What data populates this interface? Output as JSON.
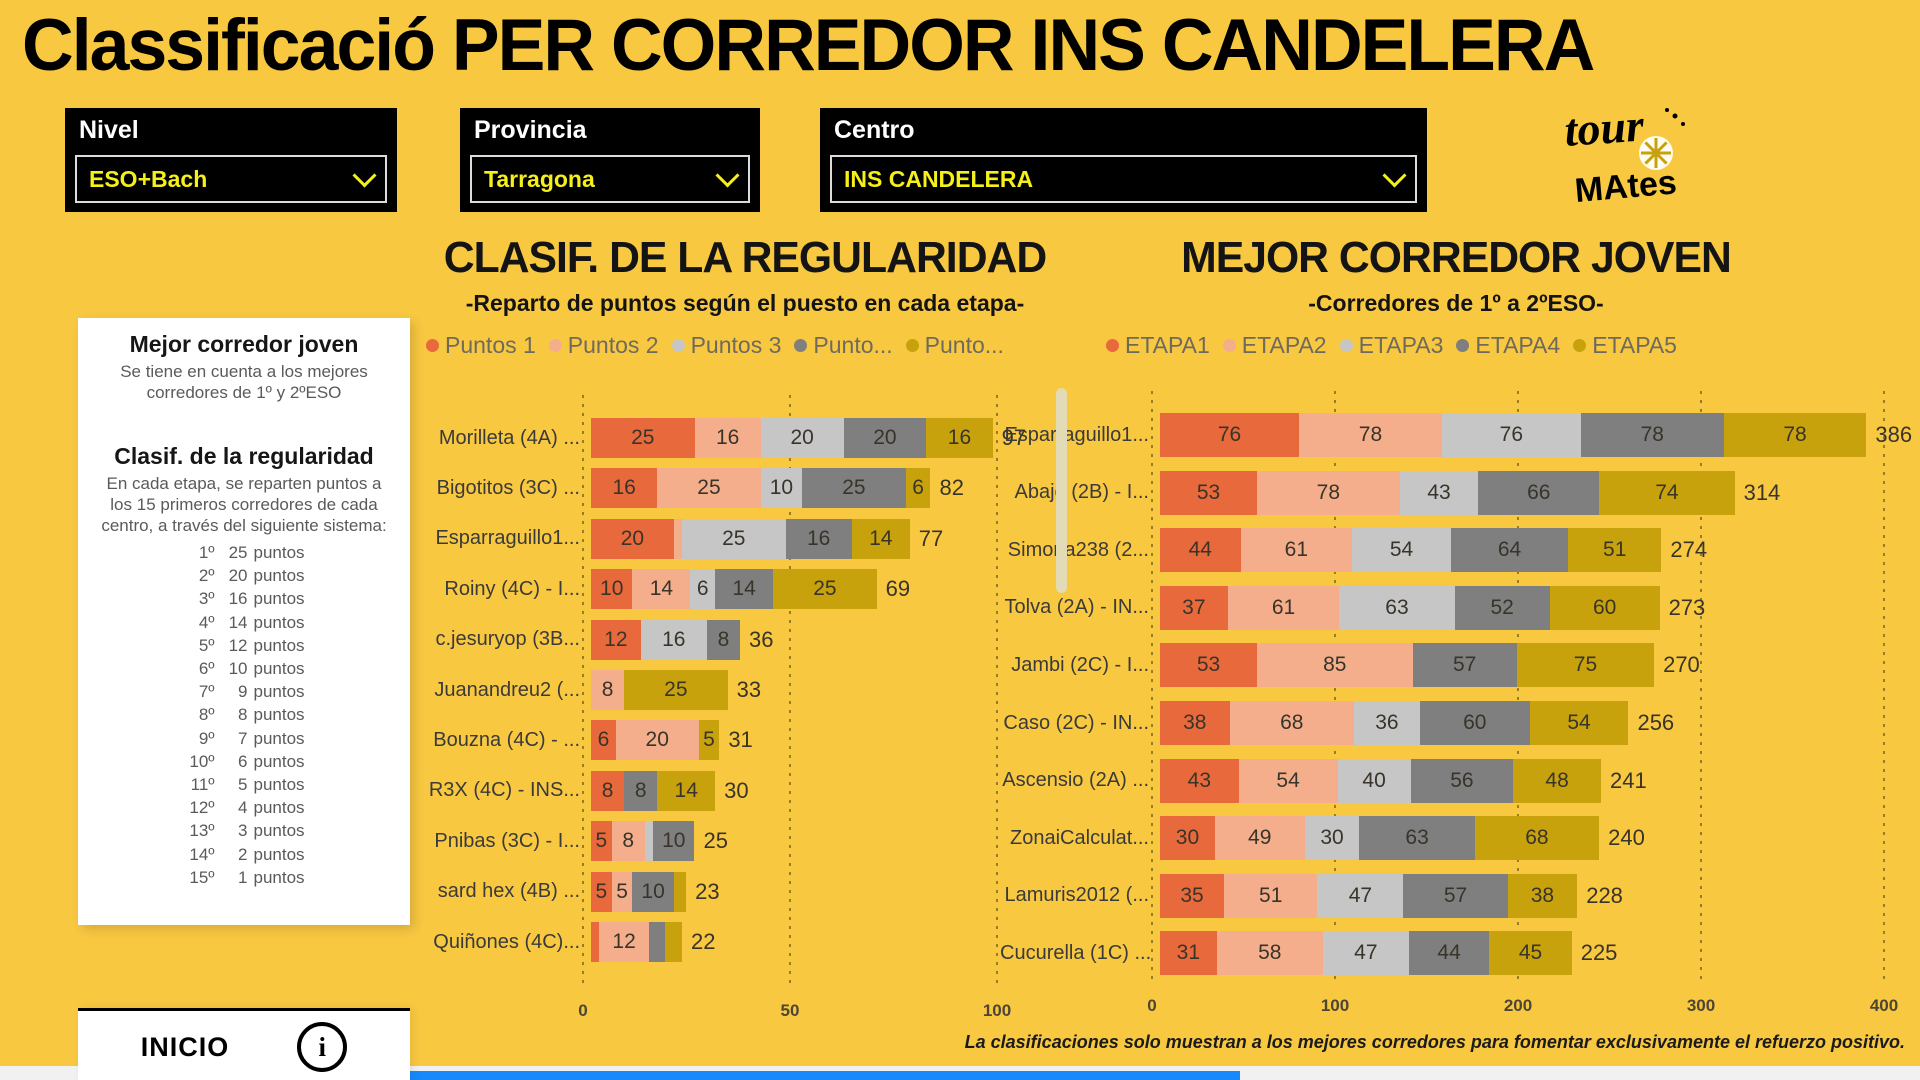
{
  "page": {
    "title": "Classificació PER CORREDOR INS CANDELERA",
    "background": "#F8C841"
  },
  "filters": [
    {
      "label": "Nivel",
      "value": "ESO+Bach"
    },
    {
      "label": "Provincia",
      "value": "Tarragona"
    },
    {
      "label": "Centro",
      "value": "INS CANDELERA"
    }
  ],
  "filter_value_color": "#F5EF1A",
  "logo": {
    "line1": "tour",
    "line2": "MAtes"
  },
  "info_panel": {
    "section1_title": "Mejor corredor joven",
    "section1_text": "Se tiene en cuenta a los mejores corredores de 1º y 2ºESO",
    "section2_title": "Clasif. de la regularidad",
    "section2_text": "En cada etapa, se reparten puntos a los 15 primeros corredores de cada centro, a través del siguiente sistema:",
    "points_table": [
      {
        "pos": "1º",
        "num": "25",
        "unit": "puntos"
      },
      {
        "pos": "2º",
        "num": "20",
        "unit": "puntos"
      },
      {
        "pos": "3º",
        "num": "16",
        "unit": "puntos"
      },
      {
        "pos": "4º",
        "num": "14",
        "unit": "puntos"
      },
      {
        "pos": "5º",
        "num": "12",
        "unit": "puntos"
      },
      {
        "pos": "6º",
        "num": "10",
        "unit": "puntos"
      },
      {
        "pos": "7º",
        "num": "9",
        "unit": "puntos"
      },
      {
        "pos": "8º",
        "num": "8",
        "unit": "puntos"
      },
      {
        "pos": "9º",
        "num": "7",
        "unit": "puntos"
      },
      {
        "pos": "10º",
        "num": "6",
        "unit": "puntos"
      },
      {
        "pos": "11º",
        "num": "5",
        "unit": "puntos"
      },
      {
        "pos": "12º",
        "num": "4",
        "unit": "puntos"
      },
      {
        "pos": "13º",
        "num": "3",
        "unit": "puntos"
      },
      {
        "pos": "14º",
        "num": "2",
        "unit": "puntos"
      },
      {
        "pos": "15º",
        "num": "1",
        "unit": "puntos"
      }
    ]
  },
  "inicio_button": {
    "label": "INICIO",
    "icon": "info-icon"
  },
  "footnote": "La clasificaciones solo muestran a los mejores corredores para fomentar exclusivamente el refuerzo positivo.",
  "chart_data": [
    {
      "type": "bar",
      "stacked": true,
      "orientation": "horizontal",
      "title": "CLASIF. DE LA REGULARIDAD",
      "subtitle": "-Reparto de puntos según el puesto en cada etapa-",
      "legend": [
        {
          "label": "Puntos 1",
          "color": "#E8693B"
        },
        {
          "label": "Puntos 2",
          "color": "#F4AE8B"
        },
        {
          "label": "Puntos 3",
          "color": "#C6C6C6"
        },
        {
          "label": "Punto...",
          "color": "#7F7F7F"
        },
        {
          "label": "Punto...",
          "color": "#C7A20C"
        }
      ],
      "xlim": [
        0,
        100
      ],
      "xticks": [
        0,
        50,
        100
      ],
      "grid": "dotted-vertical",
      "rows": [
        {
          "label": "Morilleta (4A) ...",
          "values": [
            25,
            16,
            20,
            20,
            16
          ],
          "total": 97
        },
        {
          "label": "Bigotitos (3C) ...",
          "values": [
            16,
            25,
            10,
            25,
            6
          ],
          "total": 82
        },
        {
          "label": "Esparraguillo1...",
          "values": [
            20,
            2,
            25,
            16,
            14
          ],
          "total": 77
        },
        {
          "label": "Roiny (4C) - I...",
          "values": [
            10,
            14,
            6,
            14,
            25
          ],
          "total": 69
        },
        {
          "label": "c.jesuryop (3B...",
          "values": [
            12,
            0,
            16,
            8,
            0
          ],
          "total": 36
        },
        {
          "label": "Juanandreu2 (...",
          "values": [
            0,
            8,
            0,
            0,
            25
          ],
          "total": 33
        },
        {
          "label": "Bouzna (4C) - ...",
          "values": [
            6,
            20,
            0,
            0,
            5
          ],
          "total": 31
        },
        {
          "label": "R3X (4C) - INS...",
          "values": [
            8,
            0,
            0,
            8,
            14
          ],
          "total": 30
        },
        {
          "label": "Pnibas (3C) - I...",
          "values": [
            5,
            8,
            2,
            10,
            0
          ],
          "total": 25
        },
        {
          "label": "sard hex (4B) ...",
          "values": [
            5,
            5,
            0,
            10,
            3
          ],
          "total": 23
        },
        {
          "label": "Quiñones (4C)...",
          "values": [
            2,
            12,
            0,
            4,
            4
          ],
          "total": 22
        }
      ]
    },
    {
      "type": "bar",
      "stacked": true,
      "orientation": "horizontal",
      "title": "MEJOR CORREDOR JOVEN",
      "subtitle": "-Corredores de 1º a 2ºESO-",
      "legend": [
        {
          "label": "ETAPA1",
          "color": "#E8693B"
        },
        {
          "label": "ETAPA2",
          "color": "#F4AE8B"
        },
        {
          "label": "ETAPA3",
          "color": "#C6C6C6"
        },
        {
          "label": "ETAPA4",
          "color": "#7F7F7F"
        },
        {
          "label": "ETAPA5",
          "color": "#C7A20C"
        }
      ],
      "xlim": [
        0,
        400
      ],
      "xticks": [
        0,
        100,
        200,
        300,
        400
      ],
      "grid": "dotted-vertical",
      "rows": [
        {
          "label": "Esparraguillo1...",
          "values": [
            76,
            78,
            76,
            78,
            78
          ],
          "total": 386
        },
        {
          "label": "Abajo (2B) - I...",
          "values": [
            53,
            78,
            43,
            66,
            74
          ],
          "total": 314
        },
        {
          "label": "Simona238 (2...",
          "values": [
            44,
            61,
            54,
            64,
            51
          ],
          "total": 274
        },
        {
          "label": "Tolva (2A) - IN...",
          "values": [
            37,
            61,
            63,
            52,
            60
          ],
          "total": 273
        },
        {
          "label": "Jambi (2C) - I...",
          "values": [
            53,
            85,
            0,
            57,
            75
          ],
          "total": 270
        },
        {
          "label": "Caso (2C) - IN...",
          "values": [
            38,
            68,
            36,
            60,
            54
          ],
          "total": 256
        },
        {
          "label": "Ascensio (2A) ...",
          "values": [
            43,
            54,
            40,
            56,
            48
          ],
          "total": 241
        },
        {
          "label": "ZonaiCalculat...",
          "values": [
            30,
            49,
            30,
            63,
            68
          ],
          "total": 240
        },
        {
          "label": "Lamuris2012 (...",
          "values": [
            35,
            51,
            47,
            57,
            38
          ],
          "total": 228
        },
        {
          "label": "Cucurella (1C) ...",
          "values": [
            31,
            58,
            47,
            44,
            45
          ],
          "total": 225
        }
      ]
    }
  ]
}
